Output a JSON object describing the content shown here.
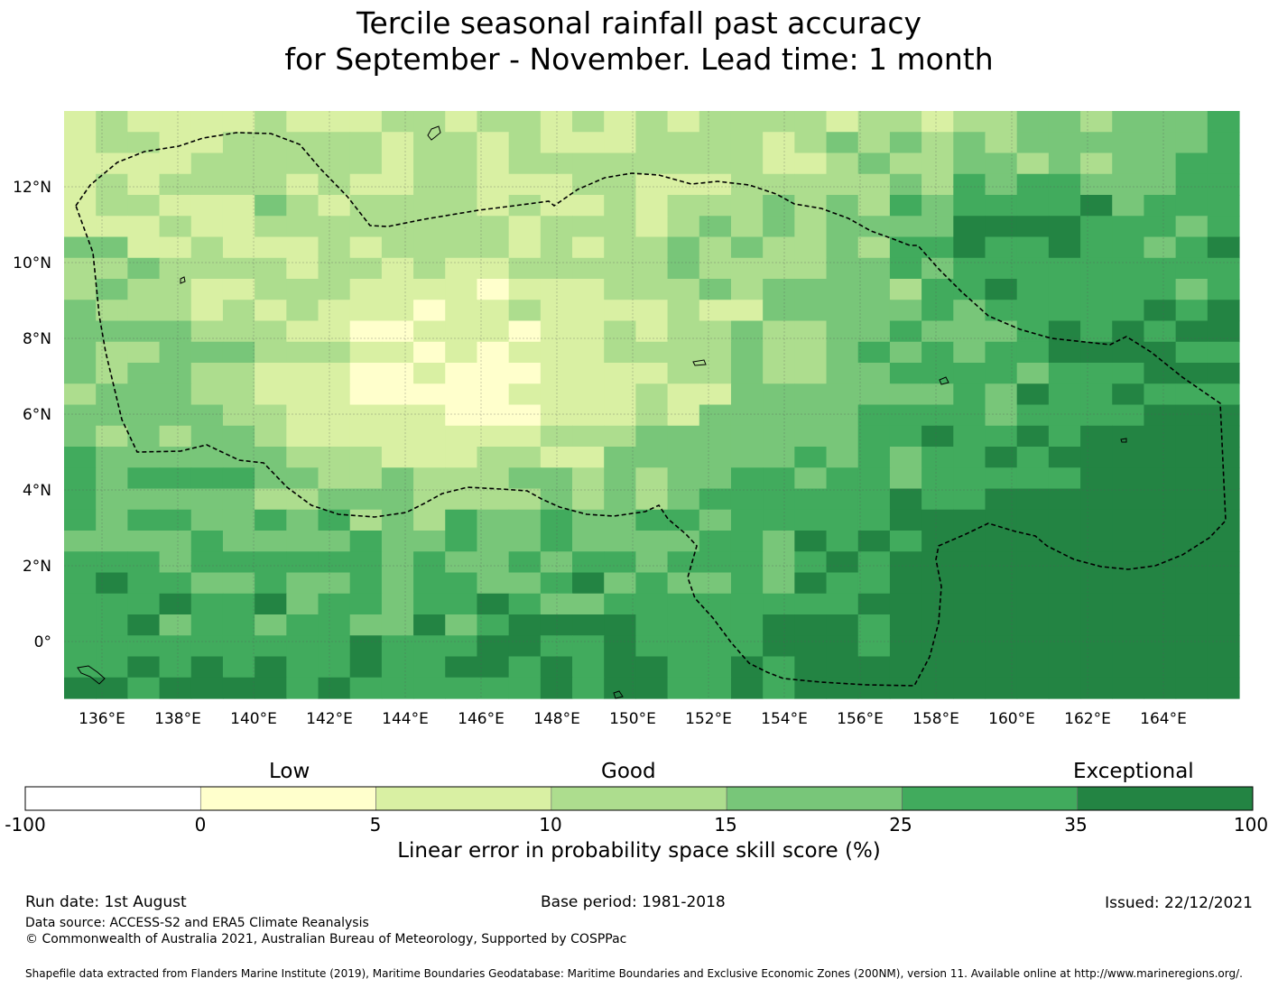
{
  "title": {
    "line1": "Tercile seasonal rainfall past accuracy",
    "line2": "for September - November. Lead time: 1 month"
  },
  "map": {
    "region": "Federated States of Micronesia EEZ",
    "lon_range": [
      135.0,
      166.0
    ],
    "lat_range": [
      -1.5,
      14.0
    ],
    "lon_ticks": [
      "136°E",
      "138°E",
      "140°E",
      "142°E",
      "144°E",
      "146°E",
      "148°E",
      "150°E",
      "152°E",
      "154°E",
      "156°E",
      "158°E",
      "160°E",
      "162°E",
      "164°E"
    ],
    "lat_ticks": [
      "12°N",
      "10°N",
      "8°N",
      "6°N",
      "4°N",
      "2°N",
      "0°"
    ]
  },
  "legend": {
    "categories": [
      "Low",
      "Good",
      "Exceptional"
    ],
    "ticks": [
      "-100",
      "0",
      "5",
      "10",
      "15",
      "25",
      "35",
      "100"
    ],
    "colors": [
      "#ffffff",
      "#ffffcc",
      "#d9f0a3",
      "#addd8e",
      "#78c679",
      "#41ab5d",
      "#238443"
    ],
    "caption": "Linear error in probability space skill score (%)"
  },
  "footer": {
    "run_date": "Run date: 1st August",
    "base_period": "Base period: 1981-2018",
    "issued": "Issued: 22/12/2021",
    "data_source": "Data source: ACCESS-S2 and ERA5 Climate Reanalysis",
    "copyright": "© Commonwealth of Australia 2021, Australian Bureau of Meteorology, Supported by COSPPac",
    "shapefile": "Shapefile data extracted from Flanders Marine Institute (2019), Maritime Boundaries Geodatabase: Maritime Boundaries and Exclusive Economic Zones (200NM), version 11. Available online at http://www.marineregions.org/."
  }
}
